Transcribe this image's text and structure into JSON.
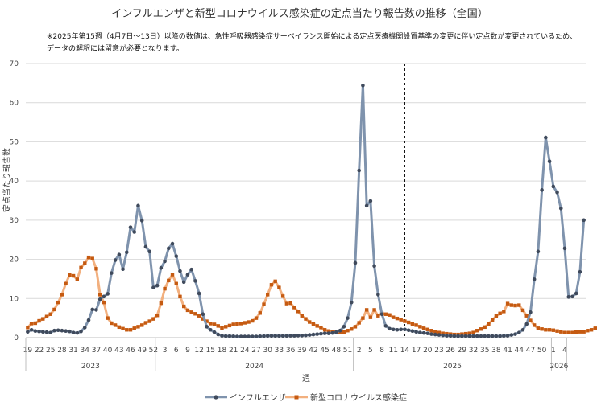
{
  "chart_data": {
    "type": "line",
    "title": "インフルエンザと新型コロナウイルス感染症の定点当たり報告数の推移（全国）",
    "note_lines": [
      "※2025年第15週（4月7日～13日）以降の数値は、急性呼吸器感染症サーベイランス開始による定点医療機関設置基準の変更に伴い定点数が変更されているため、",
      "データの解釈には留意が必要となります。"
    ],
    "xlabel": "週",
    "ylabel": "定点当たり報告数",
    "ylim": [
      0,
      70
    ],
    "yticks": [
      0,
      10,
      20,
      30,
      40,
      50,
      60,
      70
    ],
    "grid": true,
    "legend_position": "bottom",
    "marker_week_label": "14",
    "week_tick_labels": [
      "19",
      "22",
      "25",
      "28",
      "31",
      "34",
      "37",
      "40",
      "43",
      "46",
      "49",
      "52",
      "3",
      "6",
      "9",
      "12",
      "15",
      "18",
      "21",
      "24",
      "27",
      "30",
      "33",
      "36",
      "39",
      "42",
      "45",
      "48",
      "51",
      "2",
      "5",
      "8",
      "11",
      "14",
      "17",
      "20",
      "23",
      "26",
      "29",
      "32",
      "35",
      "38",
      "41",
      "44",
      "47",
      "50",
      "1",
      "4"
    ],
    "years": [
      {
        "label": "2023",
        "start": 0,
        "end": 34
      },
      {
        "label": "2024",
        "start": 34,
        "end": 86
      },
      {
        "label": "2025",
        "start": 86,
        "end": 138
      },
      {
        "label": "2026",
        "start": 138,
        "end": 142
      }
    ],
    "series": [
      {
        "name": "インフルエンザ",
        "color": "#7f93ad",
        "marker_color": "#3f4a5c",
        "values": [
          1.5,
          2.0,
          1.7,
          1.6,
          1.5,
          1.4,
          1.3,
          1.8,
          1.9,
          1.8,
          1.7,
          1.6,
          1.3,
          1.2,
          1.6,
          2.6,
          4.5,
          7.2,
          7.1,
          9.8,
          10.5,
          11.2,
          16.5,
          19.8,
          21.2,
          17.5,
          21.8,
          28.2,
          27.0,
          33.7,
          29.9,
          23.2,
          22.0,
          12.8,
          13.3,
          17.8,
          19.5,
          22.8,
          24.0,
          20.8,
          17.0,
          14.2,
          16.1,
          17.4,
          14.5,
          11.3,
          6.0,
          2.8,
          2.0,
          1.4,
          0.8,
          0.5,
          0.4,
          0.4,
          0.35,
          0.3,
          0.3,
          0.3,
          0.3,
          0.3,
          0.3,
          0.35,
          0.4,
          0.45,
          0.45,
          0.45,
          0.45,
          0.45,
          0.45,
          0.5,
          0.5,
          0.55,
          0.55,
          0.6,
          0.7,
          0.8,
          0.9,
          1.0,
          1.1,
          1.1,
          1.2,
          1.4,
          1.8,
          2.8,
          5.0,
          9.0,
          19.1,
          42.7,
          64.4,
          33.7,
          34.9,
          18.3,
          11.0,
          6.0,
          3.0,
          2.3,
          2.1,
          2.0,
          2.1,
          2.1,
          1.9,
          1.7,
          1.5,
          1.3,
          1.2,
          1.1,
          0.9,
          0.8,
          0.7,
          0.6,
          0.5,
          0.45,
          0.4,
          0.4,
          0.4,
          0.4,
          0.4,
          0.4,
          0.4,
          0.4,
          0.4,
          0.4,
          0.4,
          0.4,
          0.4,
          0.45,
          0.5,
          0.7,
          0.9,
          1.3,
          2.0,
          3.5,
          6.5,
          14.9,
          22.0,
          37.7,
          51.1,
          45.0,
          38.6,
          37.1,
          33.0,
          22.8,
          10.4,
          10.5,
          11.3,
          16.8,
          30.0
        ]
      },
      {
        "name": "新型コロナウイルス感染症",
        "color": "#f2b07f",
        "marker_color": "#c55a11",
        "values": [
          2.6,
          3.6,
          3.7,
          4.3,
          4.8,
          5.4,
          6.0,
          7.2,
          9.0,
          11.0,
          13.8,
          16.0,
          15.8,
          14.9,
          17.9,
          19.0,
          20.5,
          20.2,
          17.6,
          11.0,
          9.0,
          5.0,
          3.7,
          3.2,
          2.7,
          2.3,
          2.0,
          2.0,
          2.4,
          2.8,
          3.2,
          3.8,
          4.2,
          4.8,
          5.7,
          8.8,
          12.5,
          14.6,
          16.1,
          13.8,
          10.5,
          8.0,
          7.0,
          6.5,
          6.1,
          5.6,
          4.8,
          4.2,
          3.6,
          3.4,
          3.0,
          2.5,
          2.8,
          3.1,
          3.4,
          3.5,
          3.6,
          3.8,
          4.0,
          4.3,
          5.0,
          6.3,
          8.5,
          11.0,
          13.5,
          14.4,
          12.8,
          10.6,
          8.7,
          8.8,
          7.7,
          6.7,
          5.6,
          4.8,
          4.0,
          3.5,
          3.0,
          2.6,
          2.0,
          1.7,
          1.5,
          1.4,
          1.3,
          1.4,
          1.8,
          2.2,
          2.8,
          3.8,
          5.0,
          7.1,
          5.2,
          7.1,
          5.6,
          6.2,
          6.0,
          5.8,
          5.2,
          4.9,
          4.6,
          4.2,
          3.9,
          3.5,
          3.2,
          2.8,
          2.4,
          2.1,
          1.8,
          1.5,
          1.3,
          1.1,
          1.0,
          0.9,
          0.8,
          0.8,
          0.9,
          1.0,
          1.1,
          1.3,
          1.8,
          2.2,
          2.7,
          3.5,
          4.5,
          5.5,
          6.2,
          6.7,
          8.7,
          8.3,
          8.2,
          8.3,
          7.0,
          5.6,
          4.4,
          3.2,
          2.4,
          2.2,
          2.0,
          2.0,
          1.9,
          1.7,
          1.5,
          1.3,
          1.3,
          1.3,
          1.4,
          1.5,
          1.5,
          1.8,
          2.0,
          2.4
        ]
      }
    ]
  }
}
